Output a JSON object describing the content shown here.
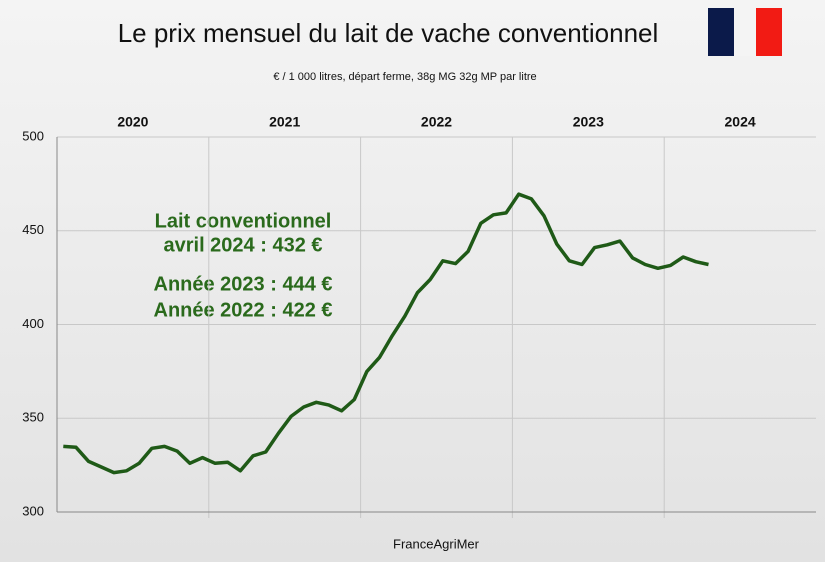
{
  "chart_data": {
    "type": "line",
    "title": "Le prix mensuel du lait de vache conventionnel",
    "subtitle": "€ / 1 000 litres, départ ferme, 38g MG 32g MP par litre",
    "source": "FranceAgriMer",
    "period_labels": [
      "2020",
      "2021",
      "2022",
      "2023",
      "2024"
    ],
    "annotations": [
      "Lait conventionnel",
      "avril 2024 : 432 €",
      "Année 2023 : 444 €",
      "Année 2022 : 422 €"
    ],
    "x": [
      null,
      null,
      null,
      null,
      null,
      null,
      null,
      null,
      null,
      null,
      null,
      null,
      null,
      null,
      null,
      null,
      null,
      null,
      null,
      null,
      null,
      null,
      null,
      null,
      null,
      null,
      null,
      null,
      null,
      null,
      null,
      null,
      null,
      null,
      null,
      null,
      null,
      null,
      null,
      null,
      null,
      null,
      null,
      null,
      null,
      null,
      null,
      null,
      null,
      null,
      null,
      null
    ],
    "series": [
      {
        "name": "Lait conventionnel",
        "color": "#1f5a17",
        "values": [
          335,
          334.5,
          327,
          324,
          321,
          322,
          326,
          334,
          335,
          332.5,
          326,
          329,
          326,
          326.5,
          322,
          330,
          332,
          342,
          351,
          356,
          358.5,
          357,
          354,
          360,
          375,
          382.5,
          394,
          404.5,
          417,
          424,
          434,
          432.5,
          439,
          454,
          458.5,
          459.5,
          469.5,
          467,
          458,
          443,
          434,
          432,
          441,
          442.5,
          444.5,
          435.5,
          432,
          430,
          431.5,
          436,
          433.5,
          432
        ]
      }
    ],
    "ylim": [
      300,
      500
    ],
    "yticks": [
      300,
      350,
      400,
      450,
      500
    ],
    "grid": true
  }
}
